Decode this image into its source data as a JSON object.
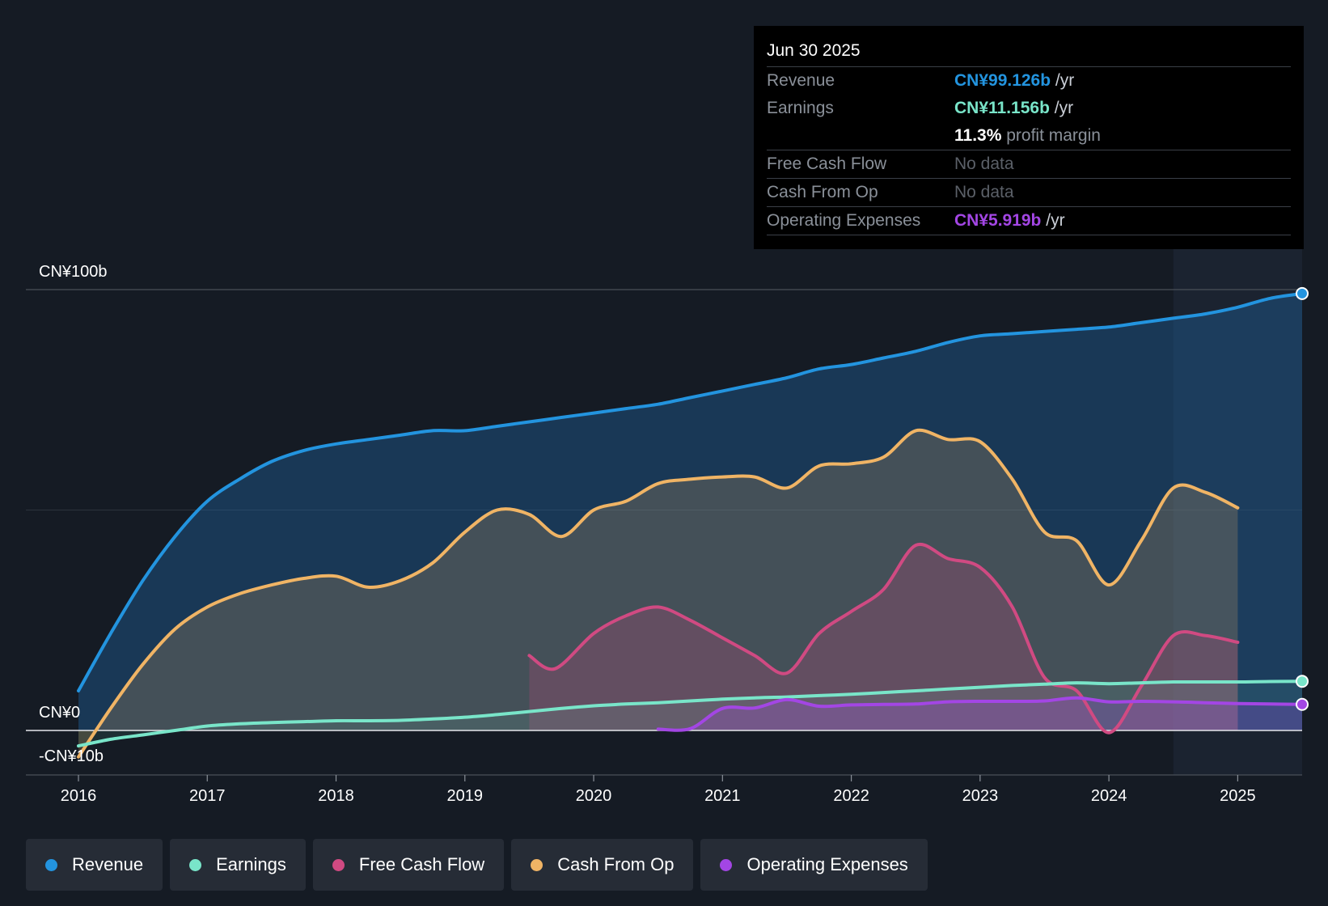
{
  "chart_data": {
    "type": "area",
    "y_unit": "CN¥ billions",
    "ylim": [
      -10,
      100
    ],
    "y_ticks": [
      {
        "value": 100,
        "label": "CN¥100b"
      },
      {
        "value": 0,
        "label": "CN¥0"
      },
      {
        "value": -10,
        "label": "-CN¥10b"
      }
    ],
    "gridline_values": [
      50
    ],
    "xlim": [
      2016,
      2025.5
    ],
    "x_ticks": [
      "2016",
      "2017",
      "2018",
      "2019",
      "2020",
      "2021",
      "2022",
      "2023",
      "2024",
      "2025"
    ],
    "forecast_region_start": 2024.5,
    "series": [
      {
        "name": "Revenue",
        "color": "#2394df",
        "points": [
          [
            2016,
            9
          ],
          [
            2016.25,
            22
          ],
          [
            2016.5,
            34
          ],
          [
            2016.75,
            44
          ],
          [
            2017,
            52
          ],
          [
            2017.25,
            57
          ],
          [
            2017.5,
            61
          ],
          [
            2017.75,
            63.5
          ],
          [
            2018,
            65
          ],
          [
            2018.25,
            66
          ],
          [
            2018.5,
            67
          ],
          [
            2018.75,
            68
          ],
          [
            2019,
            68
          ],
          [
            2019.25,
            69
          ],
          [
            2019.5,
            70
          ],
          [
            2019.75,
            71
          ],
          [
            2020,
            72
          ],
          [
            2020.25,
            73
          ],
          [
            2020.5,
            74
          ],
          [
            2020.75,
            75.5
          ],
          [
            2021,
            77
          ],
          [
            2021.25,
            78.5
          ],
          [
            2021.5,
            80
          ],
          [
            2021.75,
            82
          ],
          [
            2022,
            83
          ],
          [
            2022.25,
            84.5
          ],
          [
            2022.5,
            86
          ],
          [
            2022.75,
            88
          ],
          [
            2023,
            89.5
          ],
          [
            2023.25,
            90
          ],
          [
            2023.5,
            90.5
          ],
          [
            2023.75,
            91
          ],
          [
            2024,
            91.5
          ],
          [
            2024.25,
            92.5
          ],
          [
            2024.5,
            93.5
          ],
          [
            2024.75,
            94.5
          ],
          [
            2025,
            96
          ],
          [
            2025.25,
            98
          ],
          [
            2025.5,
            99.1
          ]
        ]
      },
      {
        "name": "Earnings",
        "color": "#79e5c9",
        "points": [
          [
            2016,
            -3.5
          ],
          [
            2016.25,
            -2
          ],
          [
            2016.5,
            -1
          ],
          [
            2016.75,
            0
          ],
          [
            2017,
            1
          ],
          [
            2017.25,
            1.5
          ],
          [
            2017.5,
            1.8
          ],
          [
            2017.75,
            2
          ],
          [
            2018,
            2.2
          ],
          [
            2018.25,
            2.2
          ],
          [
            2018.5,
            2.3
          ],
          [
            2018.75,
            2.6
          ],
          [
            2019,
            3
          ],
          [
            2019.25,
            3.6
          ],
          [
            2019.5,
            4.3
          ],
          [
            2019.75,
            5
          ],
          [
            2020,
            5.6
          ],
          [
            2020.25,
            6
          ],
          [
            2020.5,
            6.3
          ],
          [
            2020.75,
            6.7
          ],
          [
            2021,
            7.1
          ],
          [
            2021.25,
            7.4
          ],
          [
            2021.5,
            7.6
          ],
          [
            2021.75,
            7.9
          ],
          [
            2022,
            8.2
          ],
          [
            2022.25,
            8.6
          ],
          [
            2022.5,
            9
          ],
          [
            2022.75,
            9.4
          ],
          [
            2023,
            9.8
          ],
          [
            2023.25,
            10.2
          ],
          [
            2023.5,
            10.5
          ],
          [
            2023.75,
            10.8
          ],
          [
            2024,
            10.6
          ],
          [
            2024.25,
            10.8
          ],
          [
            2024.5,
            11
          ],
          [
            2024.75,
            11
          ],
          [
            2025,
            11
          ],
          [
            2025.25,
            11.1
          ],
          [
            2025.5,
            11.156
          ]
        ]
      },
      {
        "name": "Free Cash Flow",
        "color": "#d04a82",
        "points": [
          [
            2019.5,
            17
          ],
          [
            2019.7,
            14
          ],
          [
            2020,
            22
          ],
          [
            2020.25,
            26
          ],
          [
            2020.5,
            28
          ],
          [
            2020.75,
            25
          ],
          [
            2021,
            21
          ],
          [
            2021.25,
            17
          ],
          [
            2021.5,
            13
          ],
          [
            2021.75,
            22
          ],
          [
            2022,
            27
          ],
          [
            2022.25,
            32
          ],
          [
            2022.5,
            42
          ],
          [
            2022.75,
            39
          ],
          [
            2023,
            37
          ],
          [
            2023.25,
            28
          ],
          [
            2023.5,
            12
          ],
          [
            2023.75,
            9
          ],
          [
            2024,
            -0.5
          ],
          [
            2024.25,
            10
          ],
          [
            2024.5,
            21.5
          ],
          [
            2024.75,
            21.5
          ],
          [
            2025,
            20
          ]
        ]
      },
      {
        "name": "Cash From Op",
        "color": "#f0b465",
        "points": [
          [
            2016,
            -6
          ],
          [
            2016.25,
            5
          ],
          [
            2016.5,
            15
          ],
          [
            2016.75,
            23
          ],
          [
            2017,
            28
          ],
          [
            2017.25,
            31
          ],
          [
            2017.5,
            33
          ],
          [
            2017.75,
            34.5
          ],
          [
            2018,
            35
          ],
          [
            2018.25,
            32.5
          ],
          [
            2018.5,
            34
          ],
          [
            2018.75,
            38
          ],
          [
            2019,
            45
          ],
          [
            2019.25,
            50
          ],
          [
            2019.5,
            49
          ],
          [
            2019.75,
            44
          ],
          [
            2020,
            50
          ],
          [
            2020.25,
            52
          ],
          [
            2020.5,
            56
          ],
          [
            2020.75,
            57
          ],
          [
            2021,
            57.5
          ],
          [
            2021.25,
            57.5
          ],
          [
            2021.5,
            55
          ],
          [
            2021.75,
            60
          ],
          [
            2022,
            60.5
          ],
          [
            2022.25,
            62
          ],
          [
            2022.5,
            68
          ],
          [
            2022.75,
            66
          ],
          [
            2023,
            65.5
          ],
          [
            2023.25,
            57
          ],
          [
            2023.5,
            45
          ],
          [
            2023.75,
            43
          ],
          [
            2024,
            33
          ],
          [
            2024.25,
            43
          ],
          [
            2024.5,
            55
          ],
          [
            2024.75,
            54
          ],
          [
            2025,
            50.5
          ]
        ]
      },
      {
        "name": "Operating Expenses",
        "color": "#a346e4",
        "points": [
          [
            2020.5,
            0.3
          ],
          [
            2020.75,
            0.4
          ],
          [
            2021,
            5
          ],
          [
            2021.25,
            5.1
          ],
          [
            2021.5,
            7
          ],
          [
            2021.75,
            5.5
          ],
          [
            2022,
            5.8
          ],
          [
            2022.25,
            5.9
          ],
          [
            2022.5,
            6
          ],
          [
            2022.75,
            6.5
          ],
          [
            2023,
            6.6
          ],
          [
            2023.25,
            6.6
          ],
          [
            2023.5,
            6.7
          ],
          [
            2023.75,
            7.4
          ],
          [
            2024,
            6.5
          ],
          [
            2024.25,
            6.6
          ],
          [
            2024.5,
            6.5
          ],
          [
            2024.75,
            6.3
          ],
          [
            2025,
            6.1
          ],
          [
            2025.25,
            6
          ],
          [
            2025.5,
            5.919
          ]
        ]
      }
    ]
  },
  "tooltip": {
    "date": "Jun 30 2025",
    "revenue": {
      "label": "Revenue",
      "value": "CN¥99.126b",
      "unit": "/yr",
      "color": "#2394df"
    },
    "earnings": {
      "label": "Earnings",
      "value": "CN¥11.156b",
      "unit": "/yr",
      "color": "#79e5c9"
    },
    "margin": {
      "value": "11.3%",
      "text": "profit margin"
    },
    "fcf": {
      "label": "Free Cash Flow",
      "value": "No data"
    },
    "cfo": {
      "label": "Cash From Op",
      "value": "No data"
    },
    "opex": {
      "label": "Operating Expenses",
      "value": "CN¥5.919b",
      "unit": "/yr",
      "color": "#a346e4"
    }
  },
  "legend": [
    {
      "label": "Revenue",
      "color": "#2394df"
    },
    {
      "label": "Earnings",
      "color": "#79e5c9"
    },
    {
      "label": "Free Cash Flow",
      "color": "#d04a82"
    },
    {
      "label": "Cash From Op",
      "color": "#f0b465"
    },
    {
      "label": "Operating Expenses",
      "color": "#a346e4"
    }
  ]
}
